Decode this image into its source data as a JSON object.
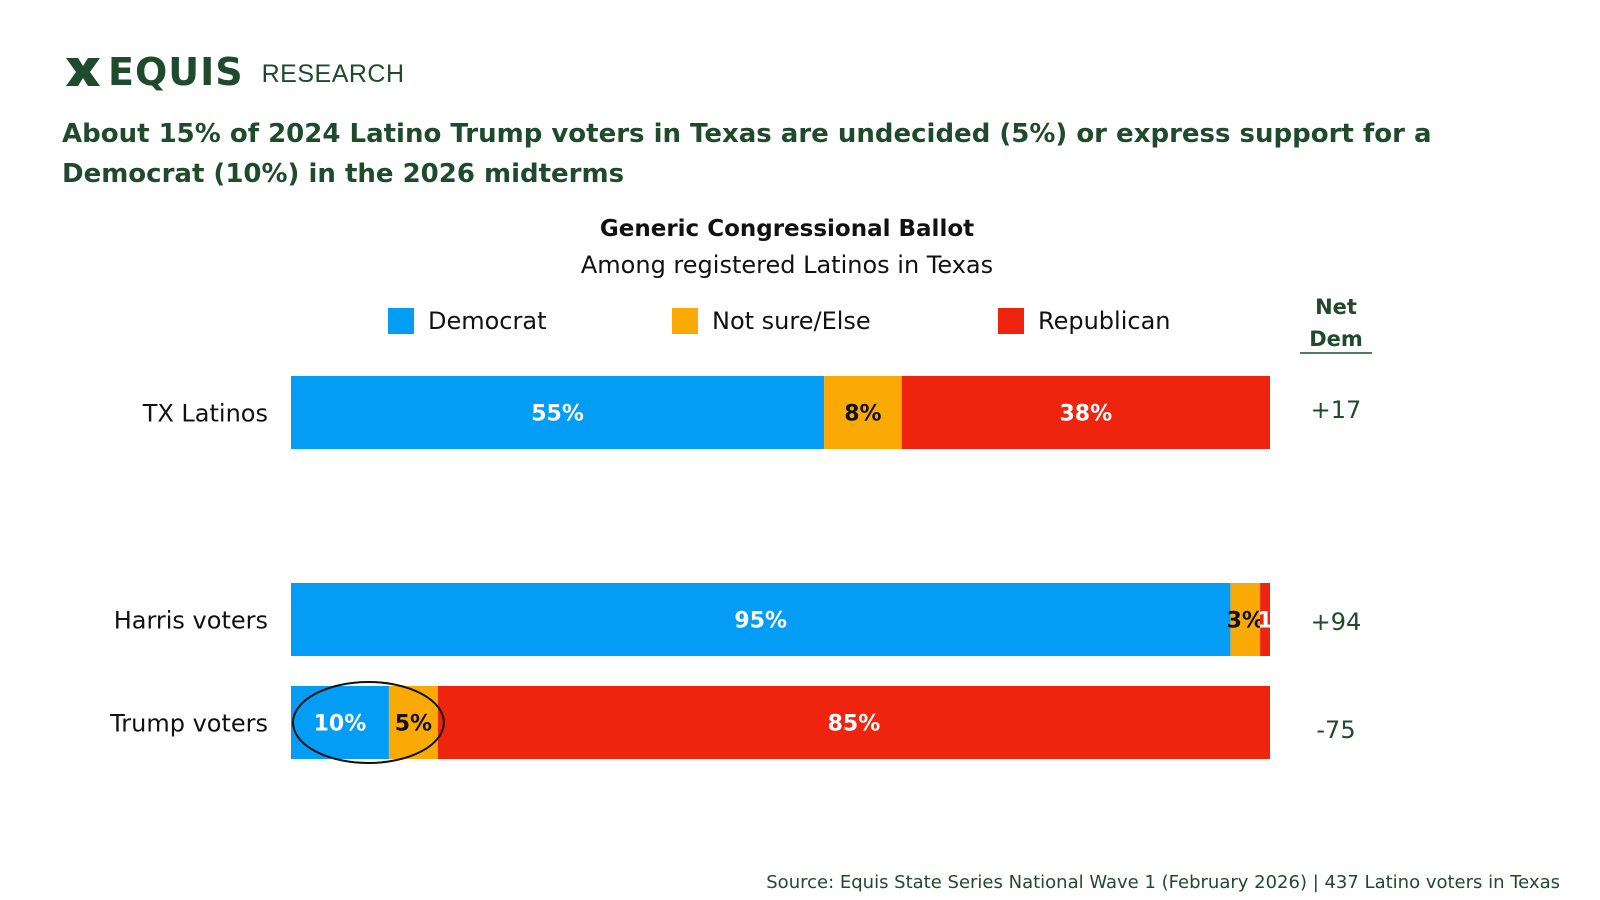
{
  "brand": {
    "name": "EQUIS",
    "section": "RESEARCH",
    "color": "#1f4a2b"
  },
  "headline": "About 15% of 2024 Latino Trump voters in Texas are undecided (5%)  or express support for a Democrat (10%) in the 2026 midterms",
  "source": "Source: Equis State Series National Wave 1 (February 2026) | 437 Latino voters in Texas",
  "chart_data": {
    "type": "bar",
    "orientation": "horizontal",
    "stacked": true,
    "title": "Generic Congressional Ballot",
    "subtitle": "Among registered Latinos in Texas",
    "xlim": [
      0,
      100
    ],
    "net_header": "Net Dem",
    "legend": [
      {
        "name": "Democrat",
        "color": "#039df5"
      },
      {
        "name": "Not sure/Else",
        "color": "#fbaa05"
      },
      {
        "name": "Republican",
        "color": "#ee240f"
      }
    ],
    "categories": [
      "TX Latinos",
      "Harris voters",
      "Trump voters"
    ],
    "series": [
      {
        "name": "Democrat",
        "values": [
          55,
          95,
          10
        ],
        "labels": [
          "55%",
          "95%",
          "10%"
        ],
        "label_color": "#ffffff"
      },
      {
        "name": "Not sure/Else",
        "values": [
          8,
          3,
          5
        ],
        "labels": [
          "8%",
          "3%",
          "5%"
        ],
        "label_color": "#111111"
      },
      {
        "name": "Republican",
        "values": [
          38,
          1,
          85
        ],
        "labels": [
          "38%",
          "1",
          "85%"
        ],
        "label_color": "#ffffff"
      }
    ],
    "net_dem": [
      "+17",
      "+94",
      "-75"
    ],
    "highlight": {
      "category": "Trump voters",
      "series": [
        "Democrat",
        "Not sure/Else"
      ],
      "shape": "ellipse"
    }
  }
}
